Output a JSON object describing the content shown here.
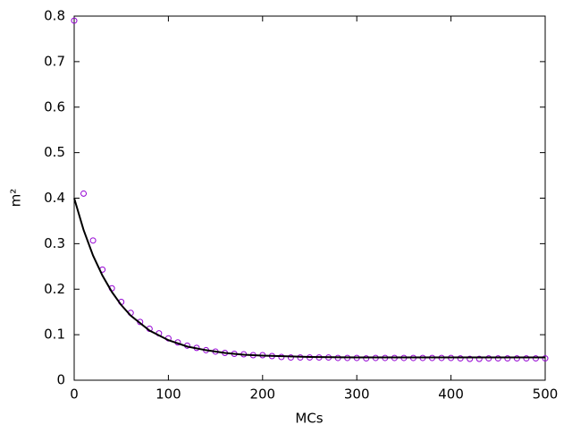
{
  "chart_data": {
    "type": "scatter",
    "xlabel": "MCs",
    "ylabel": "m²",
    "xlim": [
      0,
      500
    ],
    "ylim": [
      0,
      0.8
    ],
    "xticks": [
      0,
      100,
      200,
      300,
      400,
      500
    ],
    "yticks": [
      0,
      0.1,
      0.2,
      0.3,
      0.4,
      0.5,
      0.6,
      0.7,
      0.8
    ],
    "grid": false,
    "series": [
      {
        "style": "points",
        "color": "#9400d3",
        "x": [
          0,
          10,
          20,
          30,
          40,
          50,
          60,
          70,
          80,
          90,
          100,
          110,
          120,
          130,
          140,
          150,
          160,
          170,
          180,
          190,
          200,
          210,
          220,
          230,
          240,
          250,
          260,
          270,
          280,
          290,
          300,
          310,
          320,
          330,
          340,
          350,
          360,
          370,
          380,
          390,
          400,
          410,
          420,
          430,
          440,
          450,
          460,
          470,
          480,
          490,
          500
        ],
        "values": [
          0.79,
          0.41,
          0.307,
          0.243,
          0.202,
          0.172,
          0.148,
          0.128,
          0.113,
          0.103,
          0.092,
          0.083,
          0.076,
          0.071,
          0.066,
          0.063,
          0.06,
          0.058,
          0.057,
          0.055,
          0.055,
          0.053,
          0.051,
          0.05,
          0.05,
          0.05,
          0.05,
          0.05,
          0.049,
          0.049,
          0.049,
          0.048,
          0.049,
          0.049,
          0.049,
          0.049,
          0.049,
          0.049,
          0.049,
          0.049,
          0.049,
          0.048,
          0.047,
          0.047,
          0.048,
          0.048,
          0.048,
          0.048,
          0.048,
          0.048,
          0.048
        ]
      },
      {
        "style": "line",
        "color": "#000000",
        "x": [
          0,
          10,
          20,
          30,
          40,
          50,
          60,
          80,
          100,
          120,
          140,
          160,
          180,
          200,
          250,
          300,
          400,
          500
        ],
        "values": [
          0.4,
          0.33,
          0.274,
          0.23,
          0.194,
          0.165,
          0.142,
          0.109,
          0.088,
          0.074,
          0.066,
          0.06,
          0.056,
          0.054,
          0.051,
          0.05,
          0.05,
          0.05
        ]
      }
    ]
  }
}
